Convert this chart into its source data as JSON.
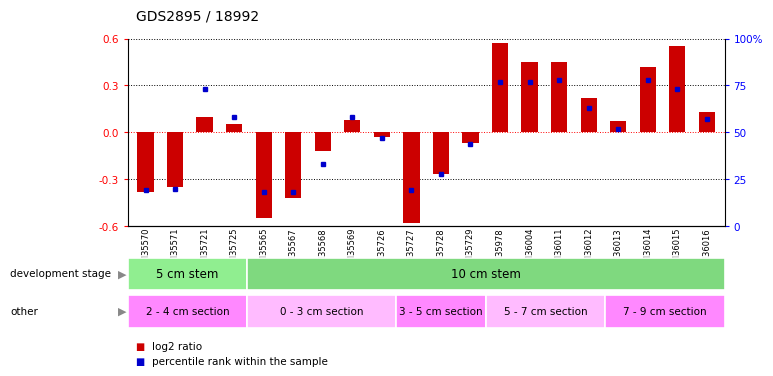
{
  "title": "GDS2895 / 18992",
  "samples": [
    "GSM35570",
    "GSM35571",
    "GSM35721",
    "GSM35725",
    "GSM35565",
    "GSM35567",
    "GSM35568",
    "GSM35569",
    "GSM35726",
    "GSM35727",
    "GSM35728",
    "GSM35729",
    "GSM35978",
    "GSM36004",
    "GSM36011",
    "GSM36012",
    "GSM36013",
    "GSM36014",
    "GSM36015",
    "GSM36016"
  ],
  "log2_ratio": [
    -0.38,
    -0.35,
    0.1,
    0.05,
    -0.55,
    -0.42,
    -0.12,
    0.08,
    -0.03,
    -0.58,
    -0.27,
    -0.07,
    0.57,
    0.45,
    0.45,
    0.22,
    0.07,
    0.42,
    0.55,
    0.13
  ],
  "percentile": [
    19,
    20,
    73,
    58,
    18,
    18,
    33,
    58,
    47,
    19,
    28,
    44,
    77,
    77,
    78,
    63,
    52,
    78,
    73,
    57
  ],
  "dev_stage_groups": [
    {
      "label": "5 cm stem",
      "start": 0,
      "end": 3,
      "color": "#90EE90"
    },
    {
      "label": "10 cm stem",
      "start": 4,
      "end": 19,
      "color": "#7FD97F"
    }
  ],
  "other_groups": [
    {
      "label": "2 - 4 cm section",
      "start": 0,
      "end": 3,
      "color": "#FF88FF"
    },
    {
      "label": "0 - 3 cm section",
      "start": 4,
      "end": 8,
      "color": "#FFBBFF"
    },
    {
      "label": "3 - 5 cm section",
      "start": 9,
      "end": 11,
      "color": "#FF88FF"
    },
    {
      "label": "5 - 7 cm section",
      "start": 12,
      "end": 15,
      "color": "#FFBBFF"
    },
    {
      "label": "7 - 9 cm section",
      "start": 16,
      "end": 19,
      "color": "#FF88FF"
    }
  ],
  "ylim": [
    -0.6,
    0.6
  ],
  "yticks_left": [
    -0.6,
    -0.3,
    0.0,
    0.3,
    0.6
  ],
  "yticks_right": [
    0,
    25,
    50,
    75,
    100
  ],
  "bar_color": "#CC0000",
  "dot_color": "#0000CC",
  "background_color": "#FFFFFF"
}
